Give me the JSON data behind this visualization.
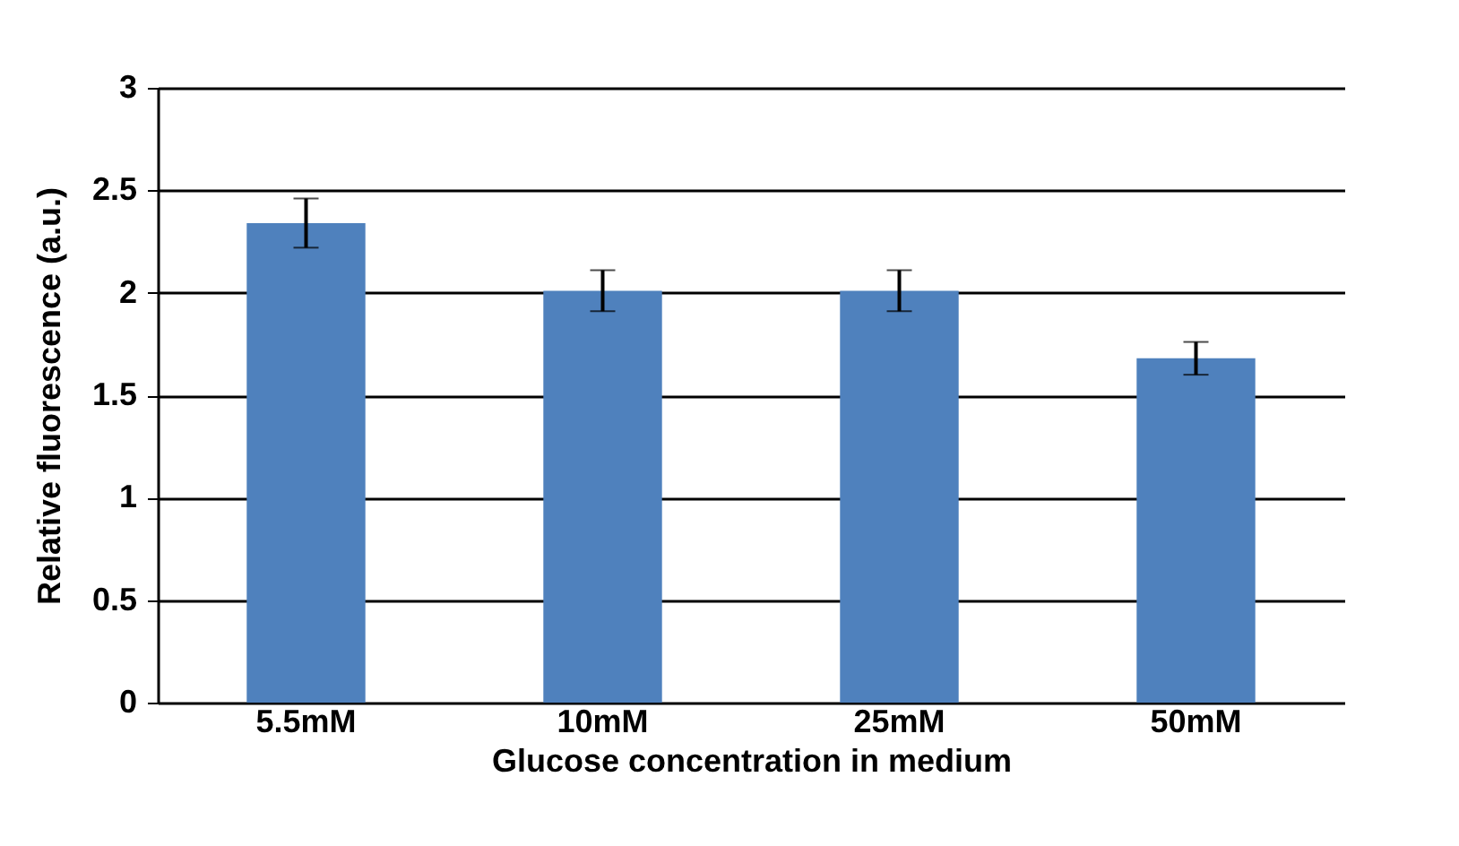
{
  "chart_data": {
    "type": "bar",
    "xlabel": "Glucose concentration in medium",
    "ylabel": "Relative fluorescence (a.u.)",
    "categories": [
      "5.5mM",
      "10mM",
      "25mM",
      "50mM"
    ],
    "values": [
      2.34,
      2.01,
      2.01,
      1.68
    ],
    "errors": [
      0.12,
      0.1,
      0.1,
      0.08
    ],
    "color": "#4f81bd",
    "ylim": [
      0,
      3
    ],
    "yticks": [
      0,
      0.5,
      1,
      1.5,
      2,
      2.5,
      3
    ],
    "grid": "y"
  }
}
